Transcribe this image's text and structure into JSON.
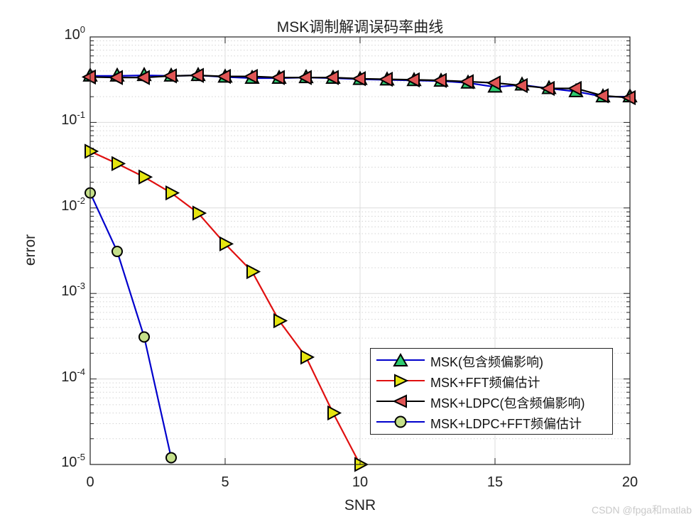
{
  "title": "MSK调制解调误码率曲线",
  "xlabel": "SNR",
  "ylabel": "error",
  "watermark": "CSDN @fpga和matlab",
  "xticks": [
    "0",
    "5",
    "10",
    "15",
    "20"
  ],
  "yticks": [
    {
      "base": "10",
      "exp": "0"
    },
    {
      "base": "10",
      "exp": "-1"
    },
    {
      "base": "10",
      "exp": "-2"
    },
    {
      "base": "10",
      "exp": "-3"
    },
    {
      "base": "10",
      "exp": "-4"
    },
    {
      "base": "10",
      "exp": "-5"
    }
  ],
  "legend": [
    {
      "label": "MSK(包含频偏影响)",
      "color": "#0000cc",
      "marker": "triangle-up",
      "fill": "#2ecc71"
    },
    {
      "label": "MSK+FFT频偏估计",
      "color": "#e01010",
      "marker": "triangle-right",
      "fill": "#e5e510"
    },
    {
      "label": "MSK+LDPC(包含频偏影响)",
      "color": "#000000",
      "marker": "triangle-left",
      "fill": "#e05555"
    },
    {
      "label": "MSK+LDPC+FFT频偏估计",
      "color": "#0000cc",
      "marker": "circle",
      "fill": "#c5e08a"
    }
  ],
  "chart_data": {
    "type": "line",
    "title": "MSK调制解调误码率曲线",
    "xlabel": "SNR",
    "ylabel": "error",
    "xlim": [
      0,
      20
    ],
    "ylim": [
      1e-05,
      1
    ],
    "yscale": "log",
    "grid": true,
    "minor_grid": true,
    "legend_position": "lower right",
    "series": [
      {
        "name": "MSK(包含频偏影响)",
        "color": "#0000cc",
        "marker": "triangle-up",
        "marker_fill": "#2ecc71",
        "x": [
          0,
          1,
          2,
          3,
          4,
          5,
          6,
          7,
          8,
          9,
          10,
          11,
          12,
          13,
          14,
          15,
          16,
          17,
          18,
          19,
          20
        ],
        "values": [
          0.35,
          0.35,
          0.355,
          0.35,
          0.355,
          0.34,
          0.33,
          0.33,
          0.335,
          0.33,
          0.32,
          0.315,
          0.31,
          0.305,
          0.29,
          0.26,
          0.275,
          0.25,
          0.23,
          0.2,
          0.2
        ]
      },
      {
        "name": "MSK+FFT频偏估计",
        "color": "#e01010",
        "marker": "triangle-right",
        "marker_fill": "#e5e510",
        "x": [
          0,
          1,
          2,
          3,
          4,
          5,
          6,
          7,
          8,
          9,
          10
        ],
        "values": [
          0.046,
          0.033,
          0.023,
          0.015,
          0.0087,
          0.0038,
          0.0018,
          0.00048,
          0.00018,
          4e-05,
          1e-05
        ]
      },
      {
        "name": "MSK+LDPC(包含频偏影响)",
        "color": "#000000",
        "marker": "triangle-left",
        "marker_fill": "#e05555",
        "x": [
          0,
          1,
          2,
          3,
          4,
          5,
          6,
          7,
          8,
          9,
          10,
          11,
          12,
          13,
          14,
          15,
          16,
          17,
          18,
          19,
          20
        ],
        "values": [
          0.34,
          0.335,
          0.335,
          0.35,
          0.355,
          0.345,
          0.345,
          0.335,
          0.335,
          0.335,
          0.325,
          0.32,
          0.315,
          0.31,
          0.3,
          0.29,
          0.27,
          0.25,
          0.25,
          0.205,
          0.195
        ]
      },
      {
        "name": "MSK+LDPC+FFT频偏估计",
        "color": "#0000cc",
        "marker": "circle",
        "marker_fill": "#c5e08a",
        "x": [
          0,
          1,
          2,
          3
        ],
        "values": [
          0.015,
          0.0031,
          0.00031,
          1.2e-05
        ]
      }
    ]
  }
}
